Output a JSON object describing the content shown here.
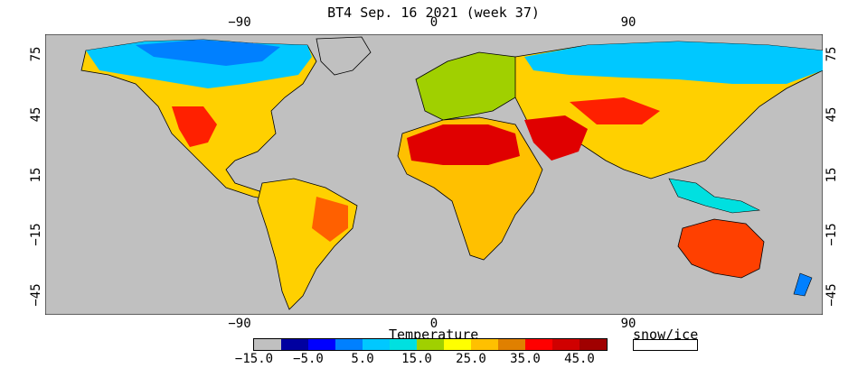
{
  "title": "BT4 Sep. 16 2021 (week 37)",
  "lon_ticks": [
    {
      "label": "−90",
      "lon": -90
    },
    {
      "label": "0",
      "lon": 0
    },
    {
      "label": "90",
      "lon": 90
    }
  ],
  "lat_ticks_left": [
    {
      "label": "75",
      "lat": 75
    },
    {
      "label": "45",
      "lat": 45
    },
    {
      "label": "15",
      "lat": 15
    },
    {
      "label": "−15",
      "lat": -15
    },
    {
      "label": "−45",
      "lat": -45
    }
  ],
  "lat_ticks_right": [
    {
      "label": "75",
      "lat": 75
    },
    {
      "label": "45",
      "lat": 45
    },
    {
      "label": "15",
      "lat": 15
    },
    {
      "label": "−15",
      "lat": -15
    },
    {
      "label": "−45",
      "lat": -45
    }
  ],
  "legend": {
    "title": "Temperature",
    "snow_label": "snow/ice",
    "colors": [
      "#c0c0c0",
      "#0000a0",
      "#0000ff",
      "#0080ff",
      "#00c8ff",
      "#00e0e0",
      "#a0d000",
      "#ffff00",
      "#ffc000",
      "#e08000",
      "#ff0000",
      "#d00000",
      "#a00000"
    ],
    "tick_labels": [
      {
        "label": "−15.0",
        "index": 0
      },
      {
        "label": "−5.0",
        "index": 2
      },
      {
        "label": "5.0",
        "index": 4
      },
      {
        "label": "15.0",
        "index": 6
      },
      {
        "label": "25.0",
        "index": 8
      },
      {
        "label": "35.0",
        "index": 10
      },
      {
        "label": "45.0",
        "index": 12
      }
    ]
  },
  "colors": {
    "ocean": "#c0c0c0",
    "border": "#000000"
  }
}
